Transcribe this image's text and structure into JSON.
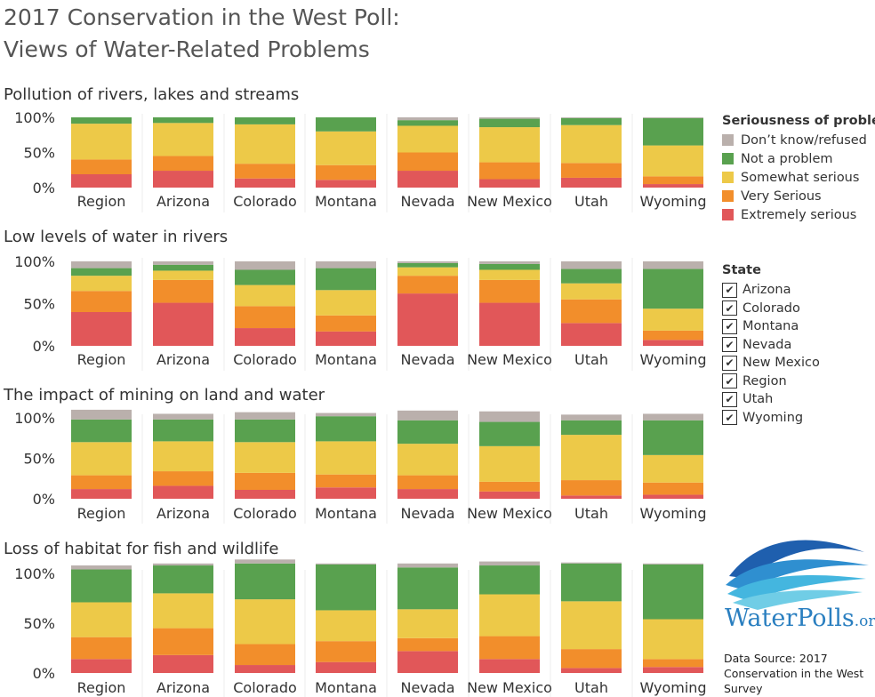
{
  "page": {
    "title_line1": "2017 Conservation in the West Poll:",
    "title_line2": "Views of Water-Related Problems"
  },
  "legend": {
    "title": "Seriousness of problem",
    "items": [
      {
        "label": "Don’t know/refused",
        "color": "#bab0ac"
      },
      {
        "label": "Not a problem",
        "color": "#59a14f"
      },
      {
        "label": "Somewhat serious",
        "color": "#edc948"
      },
      {
        "label": "Very Serious",
        "color": "#f28e2b"
      },
      {
        "label": "Extremely serious",
        "color": "#e15759"
      }
    ]
  },
  "state_filter": {
    "title": "State",
    "items": [
      {
        "label": "Arizona",
        "checked": true
      },
      {
        "label": "Colorado",
        "checked": true
      },
      {
        "label": "Montana",
        "checked": true
      },
      {
        "label": "Nevada",
        "checked": true
      },
      {
        "label": "New Mexico",
        "checked": true
      },
      {
        "label": "Region",
        "checked": true
      },
      {
        "label": "Utah",
        "checked": true
      },
      {
        "label": "Wyoming",
        "checked": true
      }
    ]
  },
  "logo": {
    "text_main": "WaterPolls",
    "text_suffix": ".org",
    "icon": "water-waves-logo"
  },
  "source": {
    "text": "Data Source: 2017 Conservation in the West Survey"
  },
  "chart_data": [
    {
      "type": "bar",
      "stacked": true,
      "title": "Pollution of rivers, lakes and streams",
      "categories": [
        "Region",
        "Arizona",
        "Colorado",
        "Montana",
        "Nevada",
        "New Mexico",
        "Utah",
        "Wyoming"
      ],
      "yticks": [
        "100%",
        "50%",
        "0%"
      ],
      "ylim": [
        0,
        100
      ],
      "series": [
        {
          "name": "Extremely serious",
          "values": [
            19,
            24,
            13,
            11,
            24,
            12,
            14,
            5
          ]
        },
        {
          "name": "Very Serious",
          "values": [
            21,
            21,
            21,
            21,
            26,
            24,
            21,
            11
          ]
        },
        {
          "name": "Somewhat serious",
          "values": [
            51,
            47,
            56,
            48,
            38,
            50,
            54,
            44
          ]
        },
        {
          "name": "Not a problem",
          "values": [
            9,
            8,
            10,
            20,
            8,
            12,
            10,
            39
          ]
        },
        {
          "name": "Don’t know/refused",
          "values": [
            0,
            0,
            0,
            0,
            4,
            2,
            1,
            1
          ]
        }
      ]
    },
    {
      "type": "bar",
      "stacked": true,
      "title": "Low levels of water in rivers",
      "categories": [
        "Region",
        "Arizona",
        "Colorado",
        "Montana",
        "Nevada",
        "New Mexico",
        "Utah",
        "Wyoming"
      ],
      "yticks": [
        "100%",
        "50%",
        "0%"
      ],
      "ylim": [
        0,
        100
      ],
      "series": [
        {
          "name": "Extremely serious",
          "values": [
            40,
            51,
            21,
            17,
            62,
            51,
            27,
            7
          ]
        },
        {
          "name": "Very Serious",
          "values": [
            25,
            27,
            26,
            19,
            21,
            27,
            28,
            11
          ]
        },
        {
          "name": "Somewhat serious",
          "values": [
            18,
            11,
            25,
            30,
            10,
            12,
            19,
            26
          ]
        },
        {
          "name": "Not a problem",
          "values": [
            9,
            7,
            18,
            26,
            5,
            7,
            17,
            47
          ]
        },
        {
          "name": "Don’t know/refused",
          "values": [
            8,
            4,
            10,
            8,
            2,
            3,
            9,
            9
          ]
        }
      ]
    },
    {
      "type": "bar",
      "stacked": true,
      "title": "The impact of mining on land and water",
      "categories": [
        "Region",
        "Arizona",
        "Colorado",
        "Montana",
        "Nevada",
        "New Mexico",
        "Utah",
        "Wyoming"
      ],
      "yticks": [
        "100%",
        "50%",
        "0%"
      ],
      "ylim": [
        0,
        100
      ],
      "series": [
        {
          "name": "Extremely serious",
          "values": [
            12,
            16,
            11,
            14,
            12,
            9,
            4,
            5
          ]
        },
        {
          "name": "Very Serious",
          "values": [
            17,
            18,
            21,
            16,
            17,
            12,
            19,
            15
          ]
        },
        {
          "name": "Somewhat serious",
          "values": [
            41,
            37,
            38,
            41,
            39,
            44,
            56,
            34
          ]
        },
        {
          "name": "Not a problem",
          "values": [
            28,
            27,
            28,
            31,
            29,
            30,
            18,
            43
          ]
        },
        {
          "name": "Don’t know/refused",
          "values": [
            12,
            7,
            9,
            4,
            12,
            13,
            7,
            8
          ]
        }
      ]
    },
    {
      "type": "bar",
      "stacked": true,
      "title": "Loss of habitat for fish and wildlife",
      "categories": [
        "Region",
        "Arizona",
        "Colorado",
        "Montana",
        "Nevada",
        "New Mexico",
        "Utah",
        "Wyoming"
      ],
      "yticks": [
        "100%",
        "50%",
        "0%"
      ],
      "ylim": [
        0,
        100
      ],
      "series": [
        {
          "name": "Extremely serious",
          "values": [
            14,
            18,
            8,
            11,
            22,
            14,
            5,
            6
          ]
        },
        {
          "name": "Very Serious",
          "values": [
            22,
            27,
            21,
            21,
            13,
            23,
            19,
            8
          ]
        },
        {
          "name": "Somewhat serious",
          "values": [
            35,
            35,
            45,
            31,
            29,
            42,
            48,
            40
          ]
        },
        {
          "name": "Not a problem",
          "values": [
            33,
            28,
            36,
            46,
            42,
            29,
            38,
            55
          ]
        },
        {
          "name": "Don’t know/refused",
          "values": [
            4,
            2,
            4,
            1,
            4,
            4,
            1,
            1
          ]
        }
      ]
    }
  ]
}
